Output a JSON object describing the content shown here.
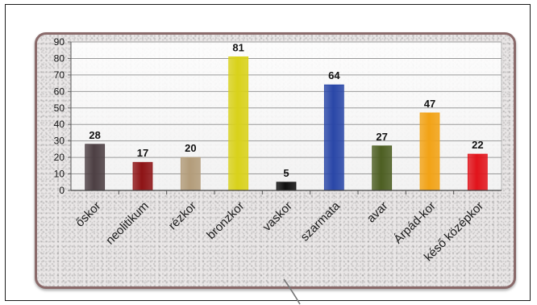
{
  "chart_data": {
    "type": "bar",
    "categories": [
      "őskor",
      "neolitikum",
      "rézkor",
      "bronzkor",
      "vaskor",
      "szarmata",
      "avar",
      "Árpád-kor",
      "késő középkor"
    ],
    "values": [
      28,
      17,
      20,
      81,
      5,
      64,
      27,
      47,
      22
    ],
    "data_labels": [
      "28",
      "17",
      "20",
      "81",
      "5",
      "64",
      "27",
      "47",
      "22"
    ],
    "bar_colors": [
      "#4d3f44",
      "#8e1416",
      "#b39c7a",
      "#d9d21a",
      "#111111",
      "#2a47a8",
      "#4d5e22",
      "#f2a315",
      "#e1141b"
    ],
    "title": "",
    "xlabel": "",
    "ylabel": "",
    "ylim": [
      0,
      90
    ],
    "yticks": [
      "0",
      "10",
      "20",
      "30",
      "40",
      "50",
      "60",
      "70",
      "80",
      "90"
    ],
    "grid": true,
    "legend": "none"
  }
}
